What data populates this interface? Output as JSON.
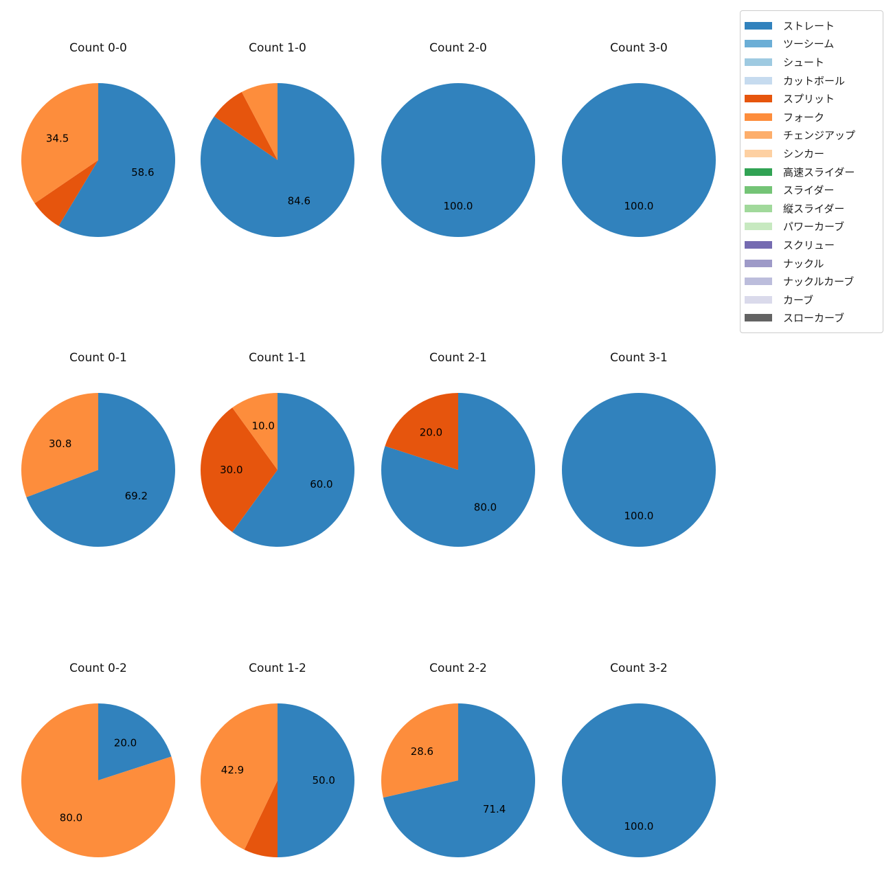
{
  "legend": {
    "items": [
      {
        "label": "ストレート",
        "color": "#3182bd"
      },
      {
        "label": "ツーシーム",
        "color": "#6baed6"
      },
      {
        "label": "シュート",
        "color": "#9ecae1"
      },
      {
        "label": "カットボール",
        "color": "#c6dbef"
      },
      {
        "label": "スプリット",
        "color": "#e6550d"
      },
      {
        "label": "フォーク",
        "color": "#fd8d3c"
      },
      {
        "label": "チェンジアップ",
        "color": "#fdae6b"
      },
      {
        "label": "シンカー",
        "color": "#fdd0a2"
      },
      {
        "label": "高速スライダー",
        "color": "#31a354"
      },
      {
        "label": "スライダー",
        "color": "#74c476"
      },
      {
        "label": "縦スライダー",
        "color": "#a1d99b"
      },
      {
        "label": "パワーカーブ",
        "color": "#c7e9c0"
      },
      {
        "label": "スクリュー",
        "color": "#756bb1"
      },
      {
        "label": "ナックル",
        "color": "#9e9ac8"
      },
      {
        "label": "ナックルカーブ",
        "color": "#bcbddc"
      },
      {
        "label": "カーブ",
        "color": "#dadaeb"
      },
      {
        "label": "スローカーブ",
        "color": "#636363"
      }
    ]
  },
  "chart_data": [
    {
      "type": "pie",
      "title": "Count 0-0",
      "start_angle": "top",
      "direction": "clockwise",
      "label_distance": 0.6,
      "slices": [
        {
          "name": "ストレート",
          "value": 58.6,
          "label": "58.6"
        },
        {
          "name": "スプリット",
          "value": 6.9,
          "label": ""
        },
        {
          "name": "フォーク",
          "value": 34.5,
          "label": "34.5"
        }
      ]
    },
    {
      "type": "pie",
      "title": "Count 1-0",
      "start_angle": "top",
      "direction": "clockwise",
      "label_distance": 0.6,
      "slices": [
        {
          "name": "ストレート",
          "value": 84.6,
          "label": "84.6"
        },
        {
          "name": "スプリット",
          "value": 7.7,
          "label": ""
        },
        {
          "name": "フォーク",
          "value": 7.7,
          "label": ""
        }
      ]
    },
    {
      "type": "pie",
      "title": "Count 2-0",
      "start_angle": "top",
      "direction": "clockwise",
      "label_distance": 0.6,
      "slices": [
        {
          "name": "ストレート",
          "value": 100.0,
          "label": "100.0"
        }
      ]
    },
    {
      "type": "pie",
      "title": "Count 3-0",
      "start_angle": "top",
      "direction": "clockwise",
      "label_distance": 0.6,
      "slices": [
        {
          "name": "ストレート",
          "value": 100.0,
          "label": "100.0"
        }
      ]
    },
    {
      "type": "pie",
      "title": "Count 0-1",
      "start_angle": "top",
      "direction": "clockwise",
      "label_distance": 0.6,
      "slices": [
        {
          "name": "ストレート",
          "value": 69.2,
          "label": "69.2"
        },
        {
          "name": "フォーク",
          "value": 30.8,
          "label": "30.8"
        }
      ]
    },
    {
      "type": "pie",
      "title": "Count 1-1",
      "start_angle": "top",
      "direction": "clockwise",
      "label_distance": 0.6,
      "slices": [
        {
          "name": "ストレート",
          "value": 60.0,
          "label": "60.0"
        },
        {
          "name": "スプリット",
          "value": 30.0,
          "label": "30.0"
        },
        {
          "name": "フォーク",
          "value": 10.0,
          "label": "10.0"
        }
      ]
    },
    {
      "type": "pie",
      "title": "Count 2-1",
      "start_angle": "top",
      "direction": "clockwise",
      "label_distance": 0.6,
      "slices": [
        {
          "name": "ストレート",
          "value": 80.0,
          "label": "80.0"
        },
        {
          "name": "スプリット",
          "value": 20.0,
          "label": "20.0"
        }
      ]
    },
    {
      "type": "pie",
      "title": "Count 3-1",
      "start_angle": "top",
      "direction": "clockwise",
      "label_distance": 0.6,
      "slices": [
        {
          "name": "ストレート",
          "value": 100.0,
          "label": "100.0"
        }
      ]
    },
    {
      "type": "pie",
      "title": "Count 0-2",
      "start_angle": "top",
      "direction": "clockwise",
      "label_distance": 0.6,
      "slices": [
        {
          "name": "ストレート",
          "value": 20.0,
          "label": "20.0"
        },
        {
          "name": "フォーク",
          "value": 80.0,
          "label": "80.0"
        }
      ]
    },
    {
      "type": "pie",
      "title": "Count 1-2",
      "start_angle": "top",
      "direction": "clockwise",
      "label_distance": 0.6,
      "slices": [
        {
          "name": "ストレート",
          "value": 50.0,
          "label": "50.0"
        },
        {
          "name": "スプリット",
          "value": 7.1,
          "label": ""
        },
        {
          "name": "フォーク",
          "value": 42.9,
          "label": "42.9"
        }
      ]
    },
    {
      "type": "pie",
      "title": "Count 2-2",
      "start_angle": "top",
      "direction": "clockwise",
      "label_distance": 0.6,
      "slices": [
        {
          "name": "ストレート",
          "value": 71.4,
          "label": "71.4"
        },
        {
          "name": "フォーク",
          "value": 28.6,
          "label": "28.6"
        }
      ]
    },
    {
      "type": "pie",
      "title": "Count 3-2",
      "start_angle": "top",
      "direction": "clockwise",
      "label_distance": 0.6,
      "slices": [
        {
          "name": "ストレート",
          "value": 100.0,
          "label": "100.0"
        }
      ]
    }
  ]
}
